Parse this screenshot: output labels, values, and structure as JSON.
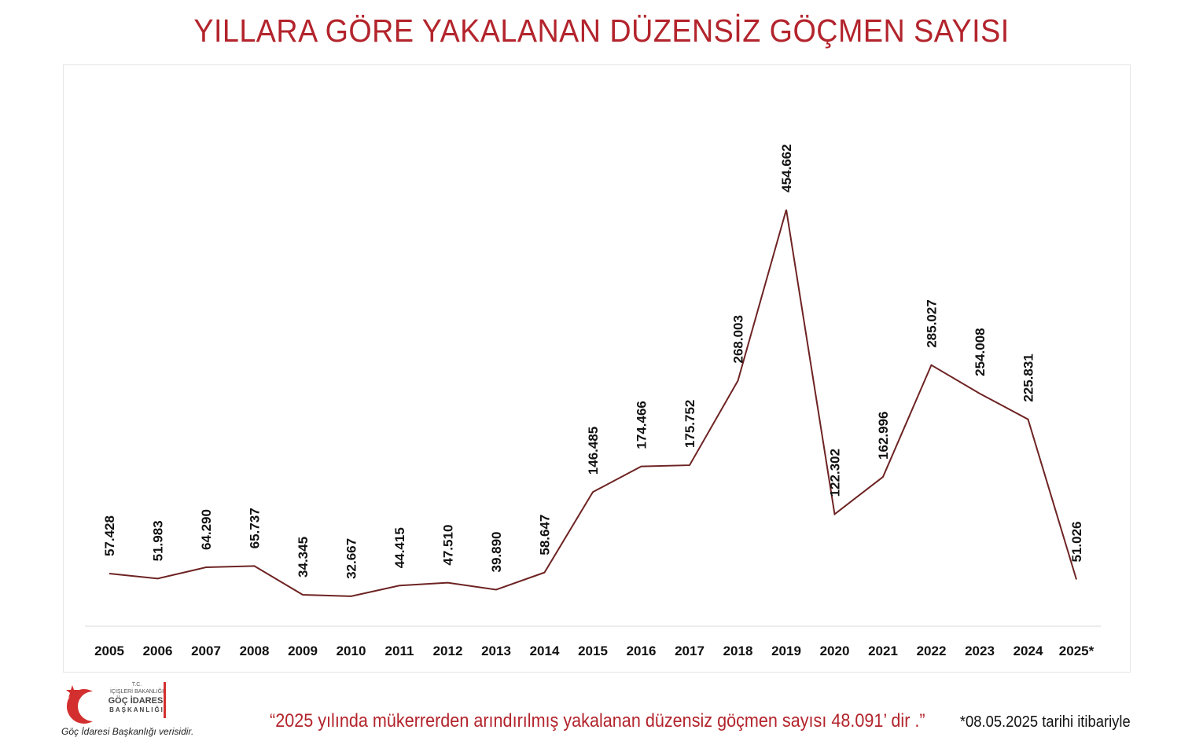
{
  "colors": {
    "title": "#b3242c",
    "line": "#6e2323",
    "footnote": "#b3242c",
    "text": "#111111",
    "axis": "#d9d9d9",
    "logo_red": "#d32f2f"
  },
  "chart_data": {
    "type": "line",
    "title": "YILLARA GÖRE YAKALANAN DÜZENSİZ GÖÇMEN SAYISI",
    "xlabel": "",
    "ylabel": "",
    "ylim": [
      0,
      500000
    ],
    "grid": false,
    "legend": "none",
    "categories": [
      "2005",
      "2006",
      "2007",
      "2008",
      "2009",
      "2010",
      "2011",
      "2012",
      "2013",
      "2014",
      "2015",
      "2016",
      "2017",
      "2018",
      "2019",
      "2020",
      "2021",
      "2022",
      "2023",
      "2024",
      "2025*"
    ],
    "values": [
      57428,
      51983,
      64290,
      65737,
      34345,
      32667,
      44415,
      47510,
      39890,
      58647,
      146485,
      174466,
      175752,
      268003,
      454662,
      122302,
      162996,
      285027,
      254008,
      225831,
      51026
    ],
    "data_labels": [
      "57.428",
      "51.983",
      "64.290",
      "65.737",
      "34.345",
      "32.667",
      "44.415",
      "47.510",
      "39.890",
      "58.647",
      "146.485",
      "174.466",
      "175.752",
      "268.003",
      "454.662",
      "122.302",
      "162.996",
      "285.027",
      "254.008",
      "225.831",
      "51.026"
    ]
  },
  "footer": {
    "note": "“2025 yılında mükerrerden arındırılmış yakalanan düzensiz göçmen sayısı 48.091’ dir .”",
    "date_note": "*08.05.2025 tarihi itibariyle",
    "source": "Göç İdaresi Başkanlığı verisidir.",
    "logo": {
      "tc": "T.C.",
      "ministry": "İÇİŞLERİ BAKANLIĞI",
      "dept": "GÖÇ İDARESİ",
      "presidency": "BAŞKANLIĞI",
      "emblem": "crescent-star-icon"
    }
  }
}
